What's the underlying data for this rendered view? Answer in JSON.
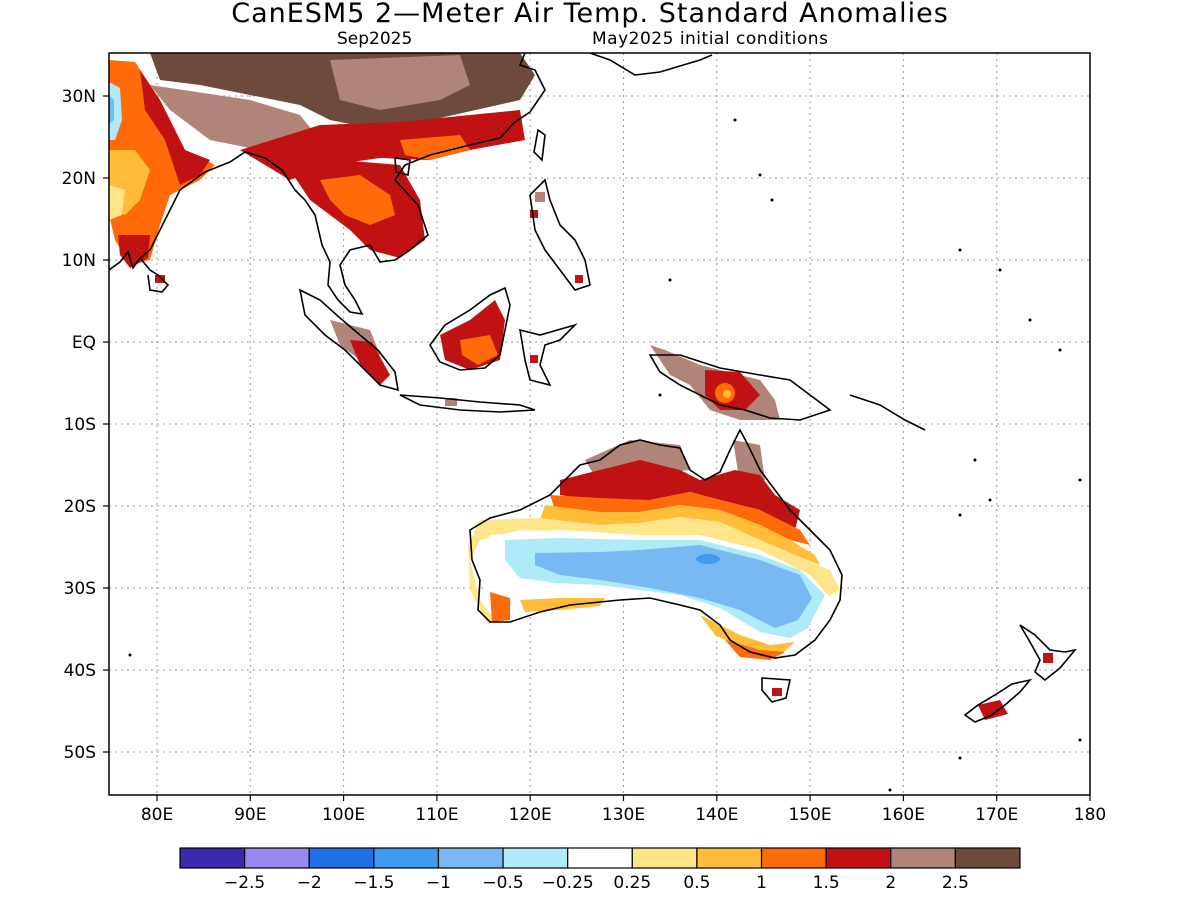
{
  "title": "CanESM5 2—Meter Air Temp. Standard Anomalies",
  "subtitle_left": "Sep2025",
  "subtitle_right": "May2025 initial conditions",
  "lat_labels": [
    "30N",
    "20N",
    "10N",
    "EQ",
    "10S",
    "20S",
    "30S",
    "40S",
    "50S"
  ],
  "lon_labels": [
    "80E",
    "90E",
    "100E",
    "110E",
    "120E",
    "130E",
    "140E",
    "150E",
    "160E",
    "170E",
    "180"
  ],
  "colorbar": {
    "colors": [
      "#3a28b0",
      "#9b87f0",
      "#1f6fe6",
      "#3d9cf0",
      "#78b8f3",
      "#aeeaf7",
      "#ffffff",
      "#ffe58a",
      "#ffbd3a",
      "#ff6a0a",
      "#c01212",
      "#b08478",
      "#6e4a3c"
    ],
    "labels": [
      "−2.5",
      "−2",
      "−1.5",
      "−1",
      "−0.5",
      "−0.25",
      "0.25",
      "0.5",
      "1",
      "1.5",
      "2",
      "2.5"
    ]
  }
}
